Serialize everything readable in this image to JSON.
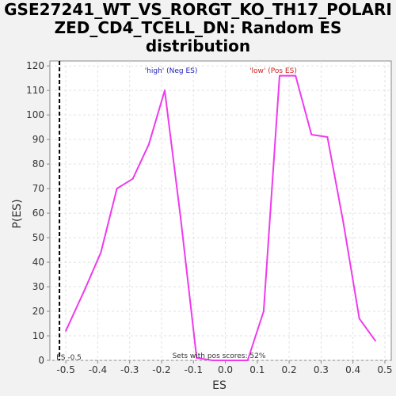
{
  "chart_data": {
    "type": "line",
    "title_lines": [
      "GSE27241_WT_VS_RORGT_KO_TH17_POLARI",
      "ZED_CD4_TCELL_DN: Random ES",
      "distribution"
    ],
    "xlabel": "ES",
    "ylabel": "P(ES)",
    "xlim": [
      -0.55,
      0.52
    ],
    "ylim": [
      0,
      122
    ],
    "x_ticks": [
      -0.5,
      -0.4,
      -0.3,
      -0.2,
      -0.1,
      0.0,
      0.1,
      0.2,
      0.3,
      0.4,
      0.5
    ],
    "x_tick_labels": [
      "-0.5",
      "-0.4",
      "-0.3",
      "-0.2",
      "-0.1",
      "0.0",
      "0.1",
      "0.2",
      "0.3",
      "0.4",
      "0.5"
    ],
    "y_ticks": [
      0,
      10,
      20,
      30,
      40,
      50,
      60,
      70,
      80,
      90,
      100,
      110,
      120
    ],
    "y_tick_labels": [
      "0",
      "10",
      "20",
      "30",
      "40",
      "50",
      "60",
      "70",
      "80",
      "90",
      "100",
      "110",
      "120"
    ],
    "grid": true,
    "series": [
      {
        "color": "#ee3bee",
        "x": [
          -0.5,
          -0.44,
          -0.39,
          -0.34,
          -0.29,
          -0.24,
          -0.19,
          -0.14,
          -0.09,
          -0.04,
          0.02,
          0.07,
          0.12,
          0.17,
          0.22,
          0.27,
          0.32,
          0.37,
          0.42,
          0.47
        ],
        "y": [
          12,
          29,
          44,
          70,
          74,
          88,
          110,
          58,
          1,
          0,
          0,
          0,
          20,
          116,
          116,
          92,
          91,
          56,
          17,
          8
        ]
      }
    ],
    "es_marker": {
      "x": -0.52,
      "label": "ES -0.5"
    },
    "annotations": {
      "neg": {
        "text": "'high' (Neg ES)",
        "color": "#2222bb",
        "x": -0.17
      },
      "pos": {
        "text": "'low' (Pos ES)",
        "color": "#cc2222",
        "x": 0.15
      },
      "pos_scores": "Sets with pos scores: 52%"
    }
  }
}
